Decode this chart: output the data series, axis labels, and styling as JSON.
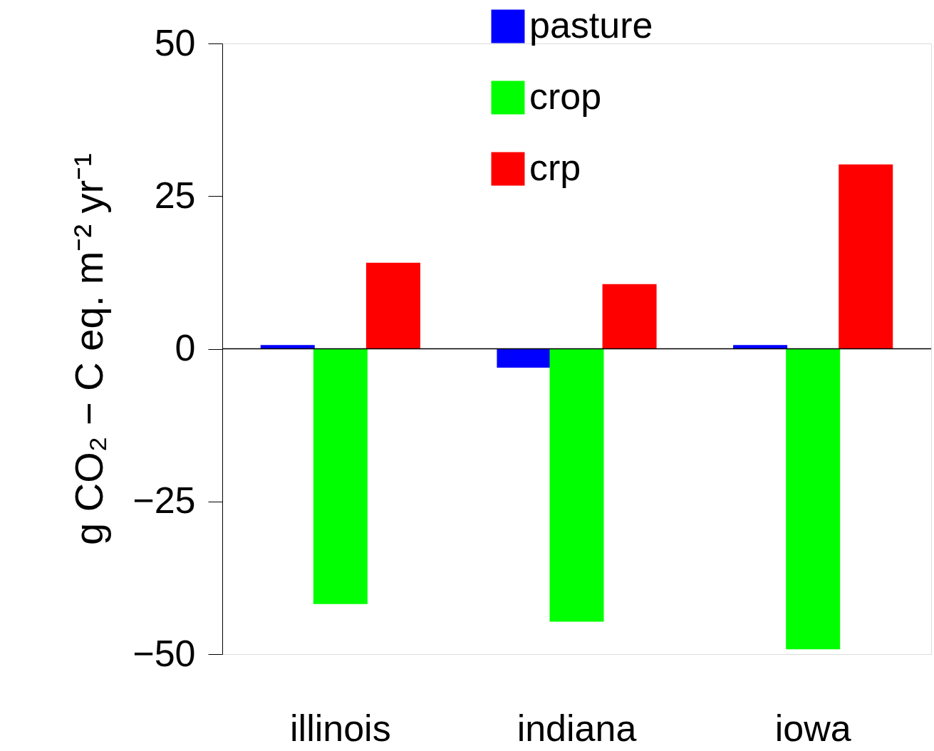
{
  "chart_data": {
    "type": "bar",
    "ylabel": "g CO₂ − C eq. m⁻² yr⁻¹",
    "categories": [
      "illinois",
      "indiana",
      "iowa"
    ],
    "series": [
      {
        "name": "pasture",
        "color": "#0000ff",
        "values": [
          0.6,
          -3.1,
          0.6
        ]
      },
      {
        "name": "crop",
        "color": "#00ff00",
        "values": [
          -41.8,
          -44.7,
          -49.2
        ]
      },
      {
        "name": "crp",
        "color": "#ff0000",
        "values": [
          14.1,
          10.6,
          30.2
        ]
      }
    ],
    "ylim": [
      -50,
      50
    ],
    "yticks": [
      -50,
      -25,
      0,
      25,
      50
    ],
    "grid": false,
    "legend": "top",
    "ref_lines": [
      {
        "axis": "y",
        "value": 0,
        "color": "#000000"
      }
    ]
  }
}
